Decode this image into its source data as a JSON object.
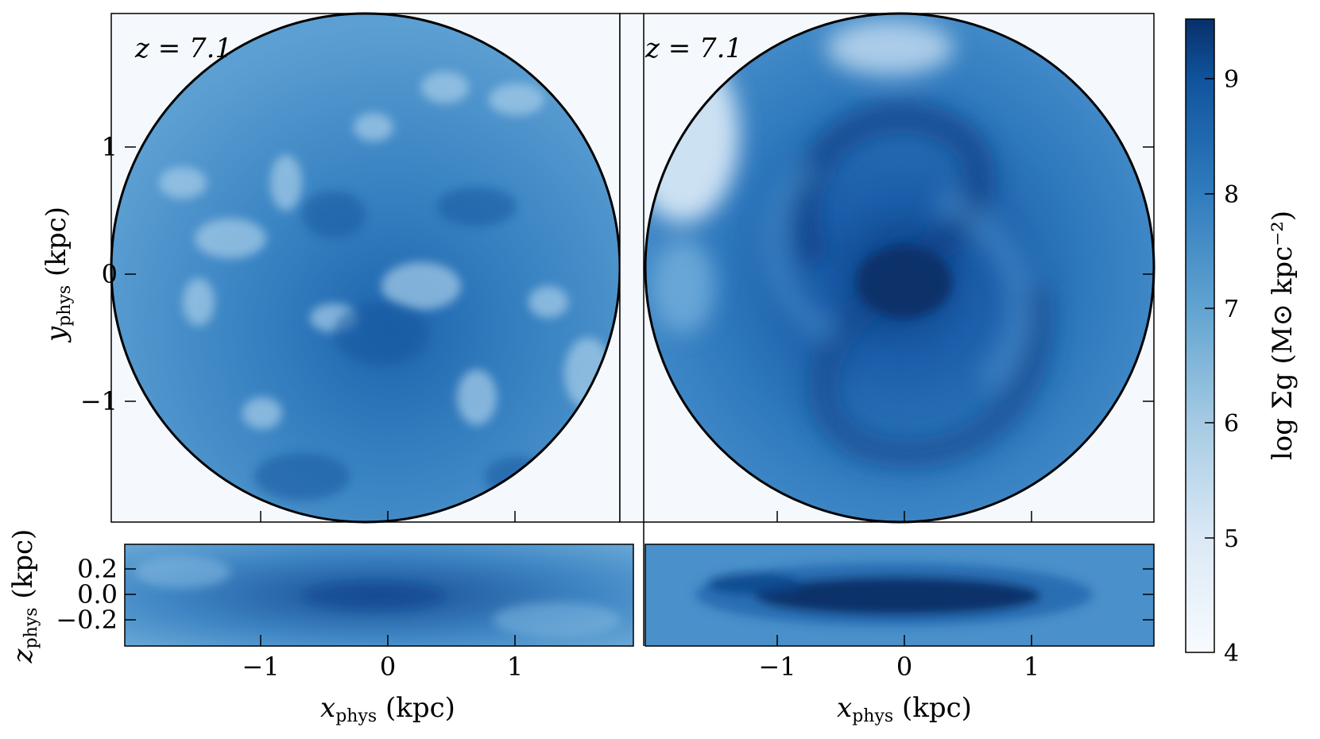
{
  "figure": {
    "panels": [
      {
        "id": "left",
        "z_label": "z = 7.1"
      },
      {
        "id": "right",
        "z_label": "z = 7.1"
      }
    ],
    "y_axis": {
      "label_main": "y",
      "label_sub": "phys",
      "label_unit": " (kpc)",
      "ticks": [
        "1",
        "0",
        "−1"
      ]
    },
    "z_axis": {
      "label_main": "z",
      "label_sub": "phys",
      "label_unit": " (kpc)",
      "ticks": [
        "0.2",
        "0.0",
        "−0.2"
      ]
    },
    "x_axis": {
      "label_main": "x",
      "label_sub": "phys",
      "label_unit": " (kpc)",
      "ticks": [
        "−1",
        "0",
        "1"
      ]
    },
    "colorbar": {
      "label": "log Σg (M⊙ kpc⁻²)",
      "ticks": [
        "9",
        "8",
        "7",
        "6",
        "5",
        "4"
      ],
      "range": [
        4,
        9.5
      ],
      "colors": {
        "low": "#f7fbff",
        "high": "#08306b"
      }
    }
  }
}
